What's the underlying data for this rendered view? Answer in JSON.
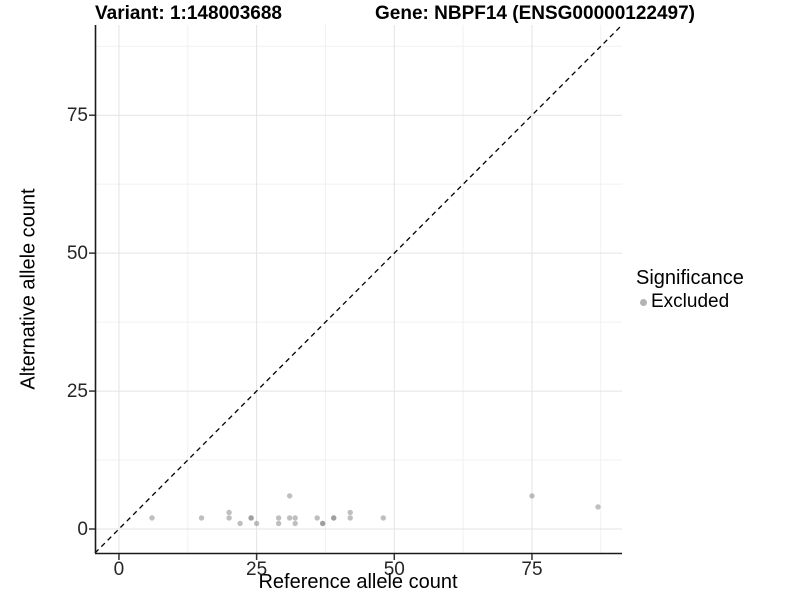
{
  "chart_data": {
    "type": "scatter",
    "title_variant": "Variant: 1:148003688",
    "title_gene": "Gene: NBPF14 (ENSG00000122497)",
    "xlabel": "Reference allele count",
    "ylabel": "Alternative allele count",
    "xlim": [
      -4.35,
      91.35
    ],
    "ylim": [
      -4.35,
      91.35
    ],
    "xticks": [
      0,
      25,
      50,
      75
    ],
    "yticks": [
      0,
      25,
      50,
      75
    ],
    "minor_xticks": [
      12.5,
      37.5,
      62.5,
      87.5
    ],
    "minor_yticks": [
      12.5,
      37.5,
      62.5,
      87.5
    ],
    "grid": "major+minor",
    "identity_line": {
      "slope": 1,
      "intercept": 0,
      "style": "dashed",
      "color": "#000000"
    },
    "legend": {
      "title": "Significance",
      "position": "right",
      "entries": [
        {
          "label": "Excluded",
          "color": "#b3b3b3"
        }
      ]
    },
    "series": [
      {
        "name": "Excluded",
        "marker_color": "#7f7f7f",
        "marker_opacity": 0.5,
        "points": [
          [
            6,
            2
          ],
          [
            15,
            2
          ],
          [
            20,
            3
          ],
          [
            20,
            2
          ],
          [
            22,
            1
          ],
          [
            24,
            2
          ],
          [
            24,
            2
          ],
          [
            25,
            1
          ],
          [
            29,
            2
          ],
          [
            29,
            1
          ],
          [
            31,
            6
          ],
          [
            31,
            2
          ],
          [
            32,
            2
          ],
          [
            32,
            1
          ],
          [
            36,
            2
          ],
          [
            37,
            1
          ],
          [
            37,
            1
          ],
          [
            39,
            2
          ],
          [
            39,
            2
          ],
          [
            42,
            3
          ],
          [
            42,
            2
          ],
          [
            48,
            2
          ],
          [
            75,
            6
          ],
          [
            87,
            4
          ]
        ]
      }
    ]
  },
  "colors": {
    "background": "#ffffff",
    "grid_major": "#e3e3e3",
    "grid_minor": "#f1f1f1",
    "axis_line": "#1a1a1a",
    "tick_mark": "#333333",
    "tick_label": "#262626"
  }
}
